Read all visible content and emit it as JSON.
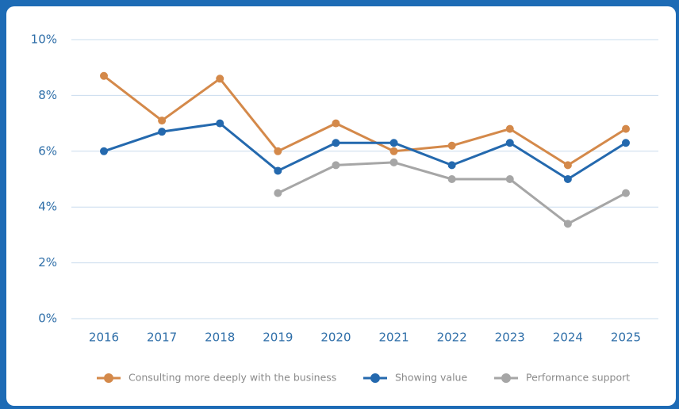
{
  "chart_data": {
    "type": "line",
    "categories": [
      "2016",
      "2017",
      "2018",
      "2019",
      "2020",
      "2021",
      "2022",
      "2023",
      "2024",
      "2025"
    ],
    "series": [
      {
        "name": "Consulting more deeply with the business",
        "color": "#d4894a",
        "values": [
          8.7,
          7.1,
          8.6,
          6.0,
          7.0,
          6.0,
          6.2,
          6.8,
          5.5,
          6.8
        ]
      },
      {
        "name": "Showing value",
        "color": "#2469ae",
        "values": [
          6.0,
          6.7,
          7.0,
          5.3,
          6.3,
          6.3,
          5.5,
          6.3,
          5.0,
          6.3
        ]
      },
      {
        "name": "Performance support",
        "color": "#a6a6a6",
        "values": [
          null,
          null,
          null,
          4.5,
          5.5,
          5.6,
          5.0,
          5.0,
          3.4,
          4.5
        ]
      }
    ],
    "ylim": [
      0,
      10
    ],
    "yticks": [
      {
        "value": 0,
        "label": "0%"
      },
      {
        "value": 2,
        "label": "2%"
      },
      {
        "value": 4,
        "label": "4%"
      },
      {
        "value": 6,
        "label": "6%"
      },
      {
        "value": 8,
        "label": "8%"
      },
      {
        "value": 10,
        "label": "10%"
      }
    ],
    "grid": true
  }
}
